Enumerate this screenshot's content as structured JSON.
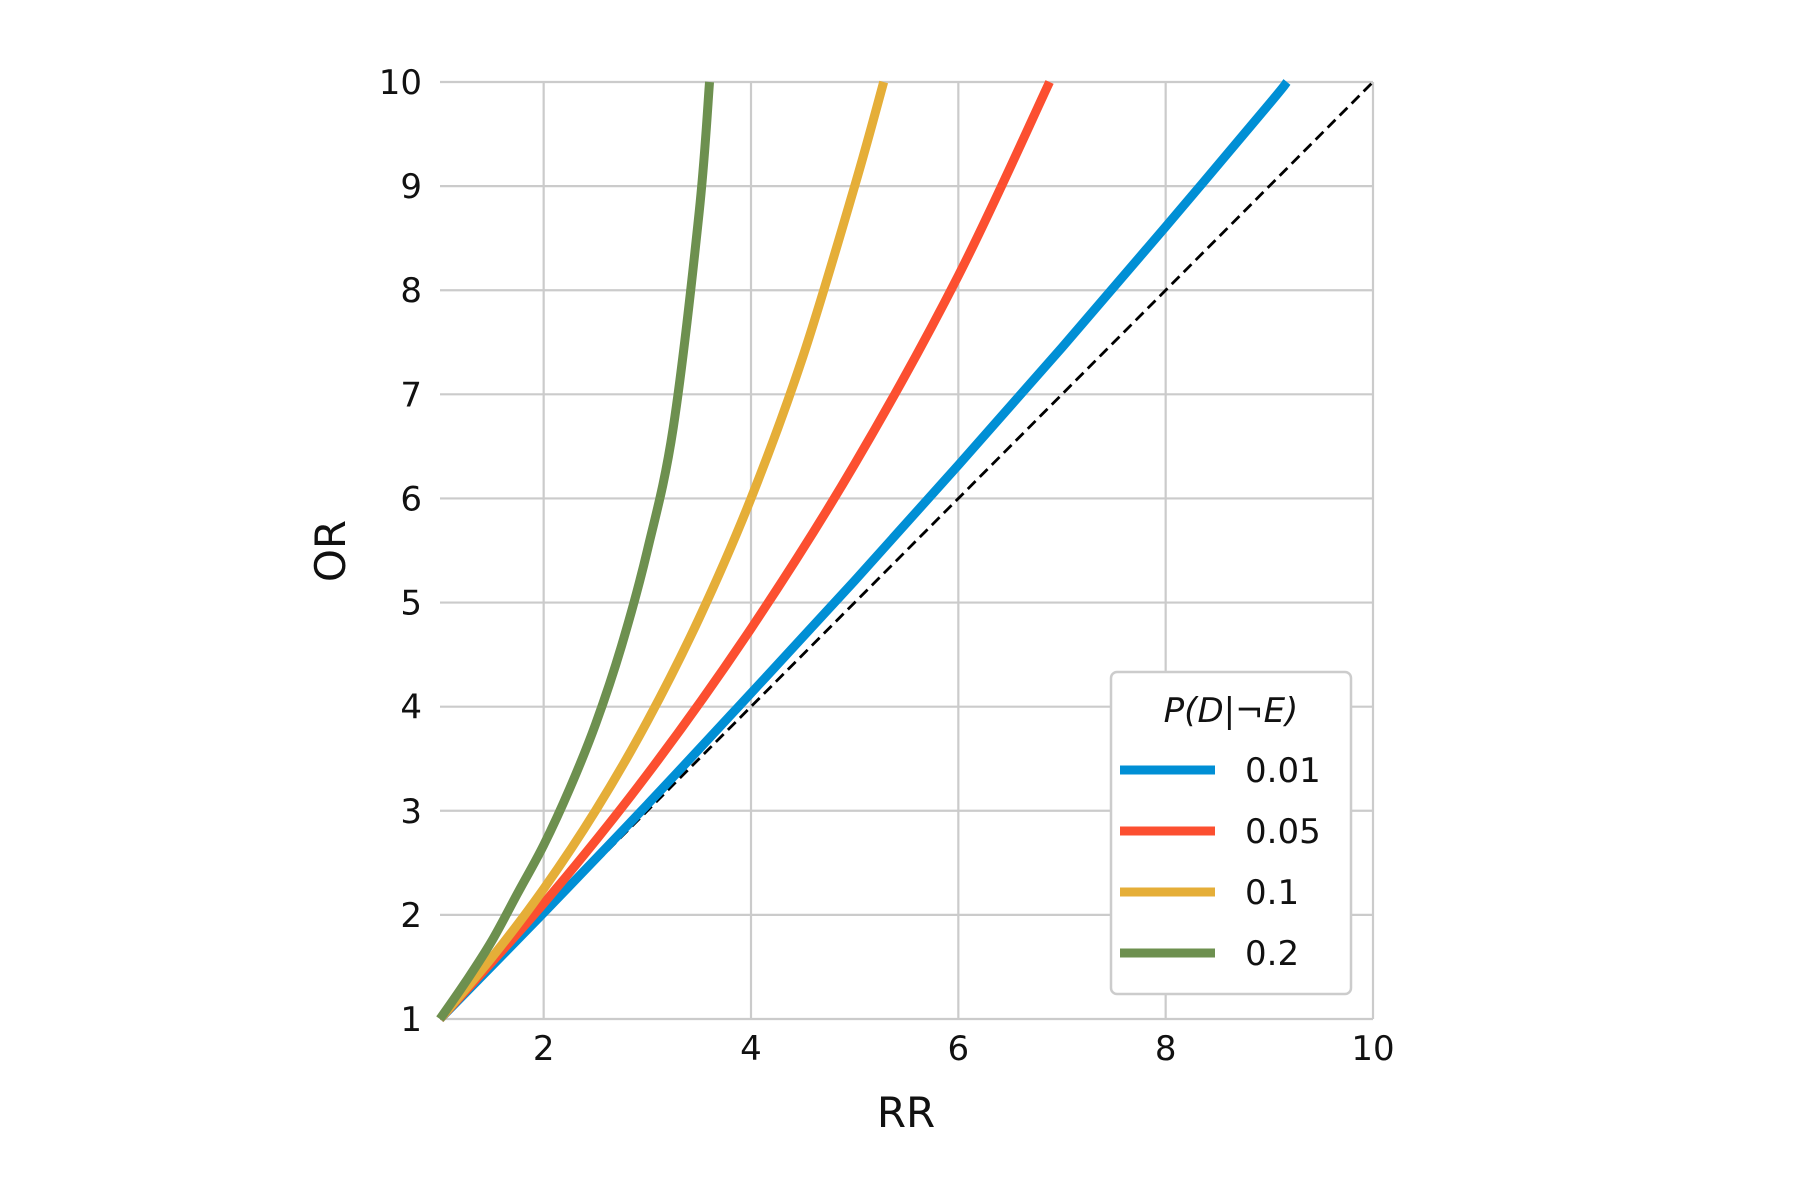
{
  "chart_data": {
    "type": "line",
    "xlabel": "RR",
    "ylabel": "OR",
    "xlim": [
      1,
      10
    ],
    "ylim": [
      1,
      10
    ],
    "xticks": [
      2,
      4,
      6,
      8,
      10
    ],
    "yticks": [
      1,
      2,
      3,
      4,
      5,
      6,
      7,
      8,
      9,
      10
    ],
    "grid": true,
    "legend": {
      "title": "P(D|¬E)",
      "position": "lower-right"
    },
    "series": [
      {
        "name": "0.01",
        "color": "#008fd5",
        "x": [
          1,
          2,
          3,
          4,
          5,
          6,
          7,
          8,
          9,
          9.17
        ],
        "y": [
          1,
          2.02,
          3.06,
          4.13,
          5.21,
          6.32,
          7.45,
          8.61,
          9.79,
          10
        ]
      },
      {
        "name": "0.05",
        "color": "#fc4f30",
        "x": [
          1,
          2,
          3,
          4,
          5,
          6,
          6.88
        ],
        "y": [
          1,
          2.11,
          3.35,
          4.75,
          6.33,
          8.14,
          10
        ]
      },
      {
        "name": "0.1",
        "color": "#e5ae38",
        "x": [
          1,
          1.5,
          2,
          2.5,
          3,
          3.5,
          4,
          4.5,
          5,
          5.28
        ],
        "y": [
          1,
          1.59,
          2.25,
          3,
          3.86,
          4.85,
          6,
          7.36,
          9,
          10
        ]
      },
      {
        "name": "0.2",
        "color": "#6d904f",
        "x": [
          1,
          1.25,
          1.5,
          1.75,
          2,
          2.25,
          2.5,
          2.75,
          3,
          3.25,
          3.5,
          3.6
        ],
        "y": [
          1,
          1.36,
          1.75,
          2.21,
          2.67,
          3.21,
          3.83,
          4.58,
          5.5,
          6.68,
          8.75,
          10
        ]
      }
    ],
    "reference_line": {
      "x": [
        1,
        10
      ],
      "y": [
        1,
        10
      ],
      "color": "#000000",
      "style": "dashed"
    }
  }
}
